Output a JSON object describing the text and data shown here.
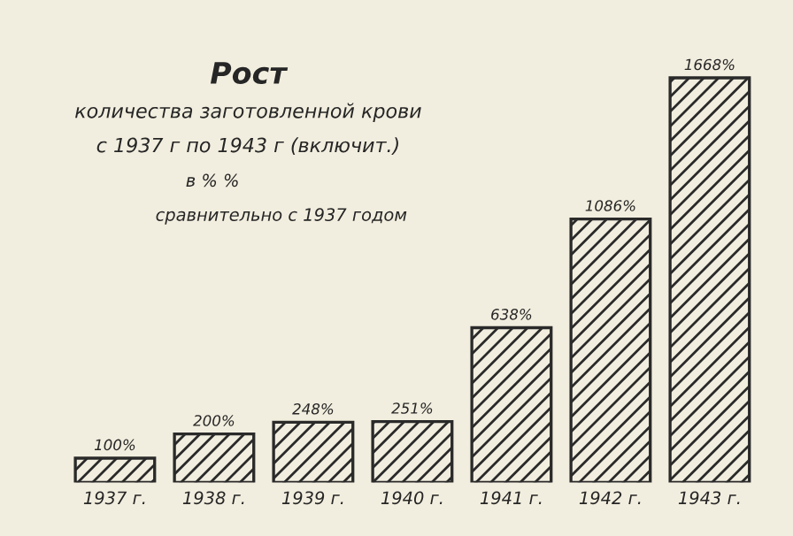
{
  "chart_data": {
    "type": "bar",
    "title": "Рост",
    "subtitle": [
      "количества заготовленной крови",
      "с 1937 г по 1943 г (включит.)"
    ],
    "annotations": [
      "в % %",
      "сравнительно с 1937 годом"
    ],
    "categories": [
      "1937 г.",
      "1938 г.",
      "1939 г.",
      "1940 г.",
      "1941 г.",
      "1942 г.",
      "1943 г."
    ],
    "values": [
      100,
      200,
      248,
      251,
      638,
      1086,
      1668
    ],
    "value_labels": [
      "100%",
      "200%",
      "248%",
      "251%",
      "638%",
      "1086%",
      "1668%"
    ],
    "color": "#2a2a2a",
    "grid": false,
    "legend": false
  }
}
